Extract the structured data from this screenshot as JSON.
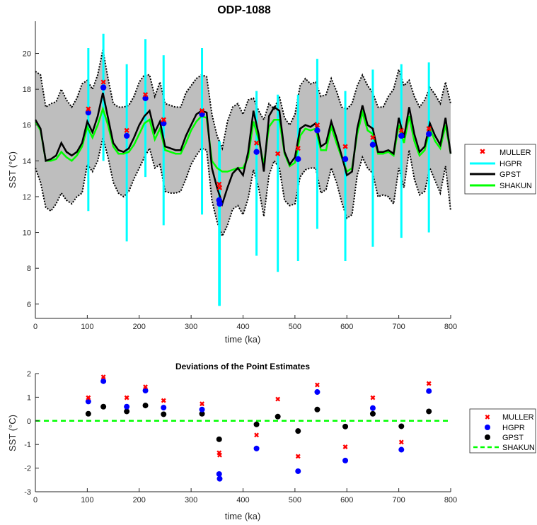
{
  "chart_data": [
    {
      "type": "line",
      "title": "ODP-1088",
      "xlabel": "time (ka)",
      "ylabel": "SST (°C)",
      "xlim": [
        0,
        800
      ],
      "ylim": [
        5.2,
        21.8
      ],
      "xticks": [
        0,
        100,
        200,
        300,
        400,
        500,
        600,
        700,
        800
      ],
      "yticks": [
        6,
        8,
        10,
        12,
        14,
        16,
        18,
        20
      ],
      "grid": false,
      "legend_position": "outside-right",
      "legend": [
        "MULLER",
        "HGPR",
        "GPST",
        "SHAKUN"
      ],
      "colors": {
        "muller": "#ff0000",
        "hgpr_marker": "#0000ff",
        "hgpr_bar": "#00ffff",
        "gpst": "#000000",
        "shakun": "#00ff00",
        "band": "#bebebe"
      },
      "series": [
        {
          "name": "GPST",
          "x": [
            0,
            10,
            20,
            30,
            40,
            50,
            60,
            70,
            80,
            90,
            100,
            110,
            120,
            130,
            140,
            150,
            160,
            170,
            180,
            190,
            200,
            210,
            220,
            230,
            240,
            250,
            260,
            270,
            280,
            290,
            300,
            310,
            320,
            330,
            340,
            350,
            360,
            370,
            380,
            390,
            400,
            410,
            420,
            430,
            440,
            450,
            460,
            470,
            480,
            490,
            500,
            510,
            520,
            530,
            540,
            550,
            560,
            570,
            580,
            590,
            600,
            610,
            620,
            630,
            640,
            650,
            660,
            670,
            680,
            690,
            700,
            710,
            720,
            730,
            740,
            750,
            760,
            770,
            780,
            790,
            800
          ],
          "values": [
            16.3,
            15.8,
            14.0,
            14.1,
            14.3,
            15.0,
            14.5,
            14.3,
            14.5,
            15.0,
            16.2,
            15.6,
            16.5,
            17.8,
            16.4,
            15.0,
            14.6,
            14.5,
            14.7,
            15.3,
            16.0,
            16.5,
            16.8,
            15.6,
            16.2,
            14.8,
            14.7,
            14.6,
            14.6,
            15.4,
            16.0,
            16.6,
            16.8,
            16.7,
            13.6,
            12.5,
            11.6,
            12.5,
            13.3,
            13.6,
            13.2,
            14.5,
            16.8,
            15.5,
            13.4,
            16.5,
            17.0,
            16.8,
            14.5,
            13.8,
            14.2,
            15.8,
            16.0,
            15.9,
            16.1,
            14.8,
            15.0,
            16.2,
            15.3,
            14.3,
            13.2,
            13.4,
            15.8,
            17.1,
            16.0,
            15.8,
            14.5,
            14.5,
            14.6,
            14.4,
            16.4,
            15.3,
            17.0,
            15.5,
            14.5,
            14.8,
            16.1,
            15.4,
            14.9,
            16.4,
            14.4
          ]
        },
        {
          "name": "SHAKUN",
          "x": [
            0,
            10,
            20,
            30,
            40,
            50,
            60,
            70,
            80,
            90,
            100,
            110,
            120,
            130,
            140,
            150,
            160,
            170,
            180,
            190,
            200,
            210,
            220,
            230,
            240,
            250,
            260,
            270,
            280,
            290,
            300,
            310,
            320,
            330,
            340,
            350,
            360,
            370,
            380,
            390,
            400,
            410,
            420,
            430,
            440,
            450,
            460,
            470,
            480,
            490,
            500,
            510,
            520,
            530,
            540,
            550,
            560,
            570,
            580,
            590,
            600,
            610,
            620,
            630,
            640,
            650,
            660,
            670,
            680,
            690,
            700,
            710,
            720,
            730,
            740,
            750,
            760,
            770,
            780,
            790,
            800
          ],
          "values": [
            16.2,
            15.7,
            14.0,
            14.0,
            14.1,
            14.5,
            14.2,
            14.0,
            14.3,
            14.8,
            15.9,
            15.3,
            16.0,
            16.9,
            16.0,
            14.8,
            14.4,
            14.4,
            14.5,
            14.9,
            15.5,
            16.1,
            16.3,
            15.2,
            15.8,
            14.6,
            14.5,
            14.4,
            14.4,
            15.0,
            15.7,
            16.2,
            16.5,
            16.4,
            14.0,
            13.6,
            13.4,
            13.4,
            13.5,
            13.6,
            13.6,
            14.2,
            16.2,
            15.2,
            13.8,
            15.9,
            16.3,
            16.3,
            14.4,
            13.7,
            13.9,
            15.4,
            15.8,
            15.7,
            15.8,
            14.6,
            14.6,
            15.9,
            15.0,
            14.2,
            13.4,
            13.6,
            15.5,
            16.7,
            15.7,
            15.5,
            14.4,
            14.4,
            14.5,
            14.3,
            16.0,
            15.0,
            16.5,
            15.1,
            14.3,
            14.6,
            15.8,
            15.1,
            14.7,
            16.0,
            14.4
          ]
        },
        {
          "name": "GPST upper bound",
          "x": [
            0,
            10,
            20,
            30,
            40,
            50,
            60,
            70,
            80,
            90,
            100,
            110,
            120,
            130,
            140,
            150,
            160,
            170,
            180,
            190,
            200,
            210,
            220,
            230,
            240,
            250,
            260,
            270,
            280,
            290,
            300,
            310,
            320,
            330,
            340,
            350,
            360,
            370,
            380,
            390,
            400,
            410,
            420,
            430,
            440,
            450,
            460,
            470,
            480,
            490,
            500,
            510,
            520,
            530,
            540,
            550,
            560,
            570,
            580,
            590,
            600,
            610,
            620,
            630,
            640,
            650,
            660,
            670,
            680,
            690,
            700,
            710,
            720,
            730,
            740,
            750,
            760,
            770,
            780,
            790,
            800
          ],
          "values": [
            19.0,
            18.8,
            17.0,
            17.2,
            17.3,
            18.0,
            17.4,
            17.0,
            17.5,
            18.3,
            18.5,
            18.0,
            18.8,
            20.2,
            18.6,
            17.2,
            17.0,
            17.0,
            17.1,
            17.6,
            18.4,
            18.8,
            18.8,
            17.6,
            18.4,
            17.2,
            17.1,
            17.0,
            17.0,
            17.8,
            18.2,
            18.6,
            18.8,
            18.7,
            16.6,
            15.4,
            14.7,
            16.2,
            17.0,
            17.2,
            16.6,
            17.4,
            17.5,
            16.8,
            16.3,
            17.2,
            16.9,
            17.6,
            16.4,
            16.0,
            16.6,
            18.2,
            18.6,
            18.3,
            18.4,
            17.6,
            17.7,
            18.6,
            17.9,
            17.0,
            16.9,
            17.2,
            18.2,
            18.8,
            18.2,
            17.8,
            17.0,
            17.0,
            17.6,
            18.0,
            19.1,
            18.2,
            18.5,
            17.6,
            17.0,
            17.4,
            18.1,
            17.7,
            17.2,
            18.4,
            17.2
          ]
        },
        {
          "name": "GPST lower bound",
          "x": [
            0,
            10,
            20,
            30,
            40,
            50,
            60,
            70,
            80,
            90,
            100,
            110,
            120,
            130,
            140,
            150,
            160,
            170,
            180,
            190,
            200,
            210,
            220,
            230,
            240,
            250,
            260,
            270,
            280,
            290,
            300,
            310,
            320,
            330,
            340,
            350,
            360,
            370,
            380,
            390,
            400,
            410,
            420,
            430,
            440,
            450,
            460,
            470,
            480,
            490,
            500,
            510,
            520,
            530,
            540,
            550,
            560,
            570,
            580,
            590,
            600,
            610,
            620,
            630,
            640,
            650,
            660,
            670,
            680,
            690,
            700,
            710,
            720,
            730,
            740,
            750,
            760,
            770,
            780,
            790,
            800
          ],
          "values": [
            13.6,
            12.8,
            11.4,
            11.2,
            11.6,
            12.2,
            11.8,
            11.6,
            12.0,
            12.2,
            13.8,
            13.4,
            14.0,
            15.3,
            14.2,
            12.8,
            12.2,
            12.0,
            12.3,
            13.0,
            13.6,
            14.2,
            14.7,
            13.6,
            13.8,
            12.3,
            12.2,
            12.2,
            12.3,
            13.0,
            13.8,
            14.3,
            14.7,
            14.6,
            11.8,
            10.6,
            9.8,
            10.4,
            11.3,
            11.5,
            11.0,
            11.9,
            13.5,
            12.5,
            10.9,
            13.2,
            14.0,
            13.6,
            11.8,
            11.5,
            11.6,
            13.1,
            13.5,
            13.6,
            13.6,
            12.2,
            12.4,
            13.6,
            12.8,
            11.7,
            10.8,
            11.0,
            13.2,
            14.2,
            13.6,
            13.3,
            12.0,
            12.1,
            12.0,
            11.6,
            13.6,
            12.5,
            14.6,
            13.0,
            12.1,
            12.3,
            13.6,
            12.9,
            12.2,
            13.7,
            11.2
          ]
        }
      ],
      "points": {
        "MULLER": {
          "x": [
            102,
            131,
            176,
            212,
            247,
            321,
            354,
            355,
            426,
            467,
            506,
            543,
            597,
            650,
            705,
            758
          ],
          "y": [
            16.9,
            18.4,
            15.7,
            17.7,
            16.3,
            16.8,
            12.7,
            12.5,
            15.0,
            14.4,
            14.7,
            16.0,
            14.8,
            15.3,
            15.7,
            15.8
          ]
        },
        "HGPR": {
          "x": [
            102,
            131,
            176,
            212,
            247,
            321,
            354,
            355,
            426,
            506,
            543,
            597,
            650,
            705,
            758
          ],
          "y": [
            16.7,
            18.1,
            15.4,
            17.5,
            16.1,
            16.6,
            11.8,
            11.6,
            14.5,
            14.1,
            15.7,
            14.1,
            14.9,
            15.4,
            15.5
          ],
          "upper": [
            20.3,
            21.1,
            19.4,
            20.8,
            19.9,
            20.3,
            15.1,
            15.1,
            17.9,
            17.7,
            19.7,
            17.9,
            19.1,
            19.4,
            19.5
          ],
          "lower": [
            11.2,
            14.0,
            9.5,
            13.1,
            10.4,
            11.0,
            5.9,
            5.9,
            8.7,
            8.4,
            10.2,
            8.4,
            9.2,
            9.7,
            10.0
          ]
        },
        "HGPR extra bar": {
          "x": [
            467
          ],
          "upper": [
            17.7
          ],
          "lower": [
            7.8
          ]
        }
      }
    },
    {
      "type": "scatter",
      "title": "Deviations of the Point Estimates",
      "xlabel": "time (ka)",
      "ylabel": "SST (°C)",
      "xlim": [
        0,
        800
      ],
      "ylim": [
        -3,
        2
      ],
      "xticks": [
        0,
        100,
        200,
        300,
        400,
        500,
        600,
        700,
        800
      ],
      "yticks": [
        -3,
        -2,
        -1,
        0,
        1,
        2
      ],
      "grid": false,
      "legend_position": "outside-right",
      "legend": [
        "MULLER",
        "HGPR",
        "GPST",
        "SHAKUN"
      ],
      "shakun_reference": 0,
      "series": [
        {
          "name": "MULLER",
          "x": [
            102,
            131,
            176,
            212,
            247,
            321,
            354,
            355,
            426,
            467,
            506,
            543,
            597,
            650,
            705,
            758
          ],
          "values": [
            0.98,
            1.86,
            0.98,
            1.44,
            0.86,
            0.72,
            -1.35,
            -1.45,
            -0.6,
            0.92,
            -1.5,
            1.52,
            -1.1,
            0.98,
            -0.9,
            1.58
          ]
        },
        {
          "name": "HGPR",
          "x": [
            102,
            131,
            176,
            212,
            247,
            321,
            354,
            355,
            426,
            506,
            543,
            597,
            650,
            705,
            758
          ],
          "values": [
            0.82,
            1.68,
            0.6,
            1.28,
            0.56,
            0.48,
            -2.25,
            -2.45,
            -1.17,
            -2.13,
            1.22,
            -1.68,
            0.54,
            -1.22,
            1.26
          ]
        },
        {
          "name": "GPST",
          "x": [
            102,
            131,
            176,
            212,
            247,
            321,
            354,
            426,
            467,
            506,
            543,
            597,
            650,
            705,
            758
          ],
          "values": [
            0.3,
            0.6,
            0.4,
            0.65,
            0.28,
            0.3,
            -0.78,
            -0.15,
            0.18,
            -0.43,
            0.48,
            -0.24,
            0.3,
            -0.23,
            0.4
          ]
        }
      ]
    }
  ]
}
